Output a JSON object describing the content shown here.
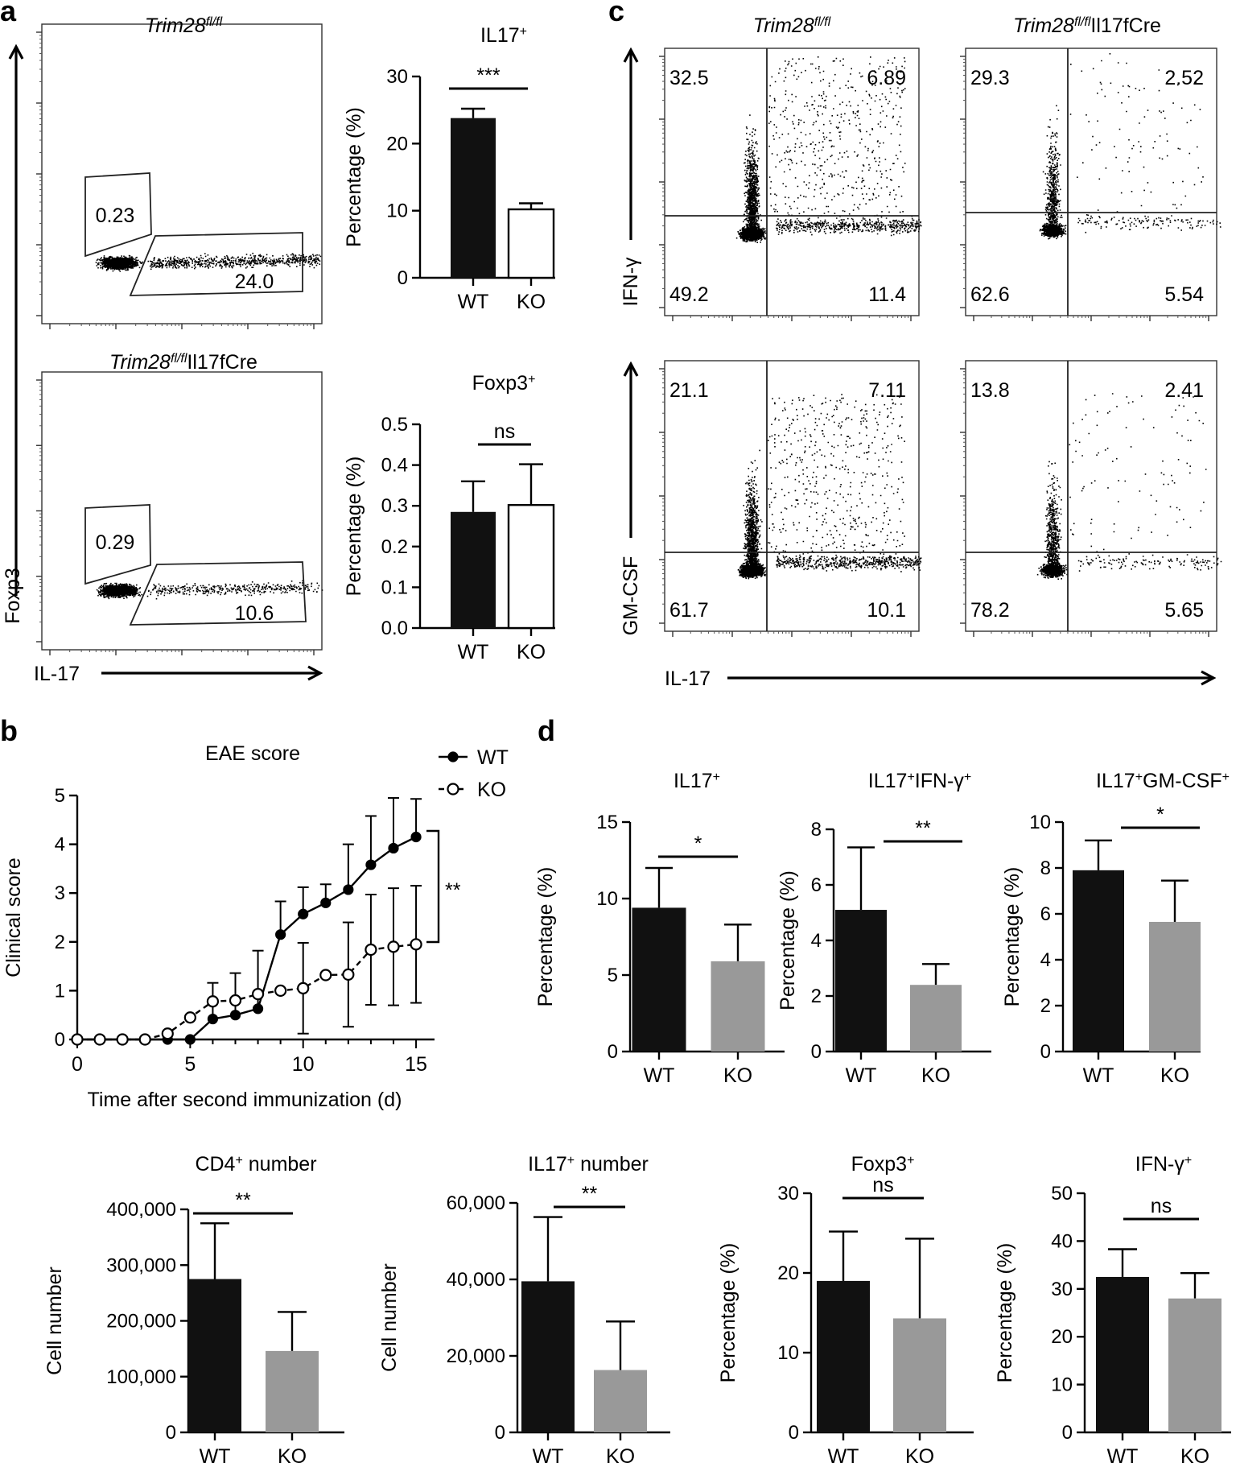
{
  "panel_labels": {
    "a": "a",
    "b": "b",
    "c": "c",
    "d": "d"
  },
  "panel_a": {
    "flow": [
      {
        "title_italic": "Trim28",
        "title_sup": "fl/fl",
        "title_rest": "",
        "gate_foxp3": "0.23",
        "gate_il17": "24.0"
      },
      {
        "title_italic": "Trim28",
        "title_sup": "fl/fl",
        "title_rest": "Il17fCre",
        "gate_foxp3": "0.29",
        "gate_il17": "10.6"
      }
    ],
    "y_axis_label": "Foxp3",
    "x_axis_label": "IL-17"
  },
  "panel_c": {
    "columns": [
      {
        "title_italic": "Trim28",
        "title_sup": "fl/fl",
        "title_rest": ""
      },
      {
        "title_italic": "Trim28",
        "title_sup": "fl/fl",
        "title_rest": "Il17fCre"
      }
    ],
    "rows": [
      {
        "y_label": "IFN-γ",
        "quadrants": [
          [
            "32.5",
            "6.89",
            "49.2",
            "11.4"
          ],
          [
            "29.3",
            "2.52",
            "62.6",
            "5.54"
          ]
        ]
      },
      {
        "y_label": "GM-CSF",
        "quadrants": [
          [
            "21.1",
            "7.11",
            "61.7",
            "10.1"
          ],
          [
            "13.8",
            "2.41",
            "78.2",
            "5.65"
          ]
        ]
      }
    ],
    "x_axis_label": "IL-17"
  },
  "chart_data": [
    {
      "id": "a-il17",
      "type": "bar",
      "title": "IL17",
      "title_sup": "+",
      "categories": [
        "WT",
        "KO"
      ],
      "values": [
        23.8,
        10.2
      ],
      "errors": [
        1.4,
        0.9
      ],
      "ylabel": "Percentage (%)",
      "ylim": [
        0,
        30
      ],
      "yticks": [
        "0",
        "10",
        "20",
        "30"
      ],
      "significance": "***",
      "colors": [
        "#111111",
        "#ffffff"
      ]
    },
    {
      "id": "a-foxp3",
      "type": "bar",
      "title": "Foxp3",
      "title_sup": "+",
      "categories": [
        "WT",
        "KO"
      ],
      "values": [
        0.285,
        0.302
      ],
      "errors": [
        0.075,
        0.1
      ],
      "ylabel": "Percentage (%)",
      "ylim": [
        0,
        0.5
      ],
      "yticks": [
        "0.0",
        "0.1",
        "0.2",
        "0.3",
        "0.4",
        "0.5"
      ],
      "significance": "ns",
      "colors": [
        "#111111",
        "#ffffff"
      ]
    },
    {
      "id": "b-eae",
      "type": "line",
      "title": "EAE score",
      "xlabel": "Time after second immunization (d)",
      "ylabel": "Clinical score",
      "xlim": [
        0,
        15
      ],
      "ylim": [
        0,
        5
      ],
      "xticks": [
        "0",
        "5",
        "10",
        "15"
      ],
      "yticks": [
        "0",
        "1",
        "2",
        "3",
        "4",
        "5"
      ],
      "significance": "**",
      "x": [
        0,
        1,
        2,
        3,
        4,
        5,
        6,
        7,
        8,
        9,
        10,
        11,
        12,
        13,
        14,
        15
      ],
      "series": [
        {
          "name": "WT",
          "values": [
            0,
            0,
            0,
            0,
            0,
            0,
            0.42,
            0.5,
            0.63,
            2.15,
            2.57,
            2.8,
            3.07,
            3.58,
            3.92,
            4.15
          ],
          "errors": [
            0,
            0,
            0,
            0,
            0,
            0,
            0.74,
            0.86,
            1.19,
            0.68,
            0.55,
            0.38,
            0.93,
            1.0,
            1.03,
            0.78
          ]
        },
        {
          "name": "KO",
          "values": [
            0,
            0,
            0,
            0,
            0.12,
            0.45,
            0.78,
            0.8,
            0.93,
            1.0,
            1.05,
            1.32,
            1.33,
            1.84,
            1.9,
            1.95
          ],
          "errors": [
            0,
            0,
            0,
            0,
            0,
            0,
            0,
            0,
            0,
            0,
            0.93,
            0,
            1.07,
            1.13,
            1.2,
            1.2
          ]
        }
      ]
    },
    {
      "id": "d-il17",
      "type": "bar",
      "title": "IL17",
      "title_sup": "+",
      "categories": [
        "WT",
        "KO"
      ],
      "values": [
        9.4,
        5.9
      ],
      "errors": [
        2.6,
        2.4
      ],
      "ylabel": "Percentage (%)",
      "ylim": [
        0,
        15
      ],
      "yticks": [
        "0",
        "5",
        "10",
        "15"
      ],
      "significance": "*",
      "colors": [
        "#111111",
        "#999999"
      ]
    },
    {
      "id": "d-il17ifng",
      "type": "bar",
      "title": "IL17+IFN-γ+",
      "categories": [
        "WT",
        "KO"
      ],
      "values": [
        5.1,
        2.4
      ],
      "errors": [
        2.25,
        0.75
      ],
      "ylabel": "Percentage (%)",
      "ylim": [
        0,
        8
      ],
      "yticks": [
        "0",
        "2",
        "4",
        "6",
        "8"
      ],
      "significance": "**",
      "colors": [
        "#111111",
        "#999999"
      ]
    },
    {
      "id": "d-il17gmcsf",
      "type": "bar",
      "title": "IL17+GM-CSF+",
      "categories": [
        "WT",
        "KO"
      ],
      "values": [
        7.9,
        5.65
      ],
      "errors": [
        1.3,
        1.8
      ],
      "ylabel": "Percentage (%)",
      "ylim": [
        0,
        10
      ],
      "yticks": [
        "0",
        "2",
        "4",
        "6",
        "8",
        "10"
      ],
      "significance": "*",
      "colors": [
        "#111111",
        "#999999"
      ]
    },
    {
      "id": "d-cd4num",
      "type": "bar",
      "title": "CD4",
      "title_sup": "+",
      "title_after": " number",
      "categories": [
        "WT",
        "KO"
      ],
      "values": [
        275000,
        146000
      ],
      "errors": [
        100000,
        70000
      ],
      "ylabel": "Cell number",
      "ylim": [
        0,
        400000
      ],
      "yticks": [
        "0",
        "100,000",
        "200,000",
        "300,000",
        "400,000"
      ],
      "significance": "**",
      "colors": [
        "#111111",
        "#999999"
      ]
    },
    {
      "id": "d-il17num",
      "type": "bar",
      "title": "IL17",
      "title_sup": "+",
      "title_after": " number",
      "categories": [
        "WT",
        "KO"
      ],
      "values": [
        39500,
        16300
      ],
      "errors": [
        16800,
        12700
      ],
      "ylabel": "Cell number",
      "ylim": [
        0,
        60000
      ],
      "yticks": [
        "0",
        "20,000",
        "40,000",
        "60,000"
      ],
      "significance": "**",
      "colors": [
        "#111111",
        "#999999"
      ]
    },
    {
      "id": "d-foxp3",
      "type": "bar",
      "title": "Foxp3",
      "title_sup": "+",
      "categories": [
        "WT",
        "KO"
      ],
      "values": [
        19.0,
        14.3
      ],
      "errors": [
        6.2,
        10.0
      ],
      "ylabel": "Percentage (%)",
      "ylim": [
        0,
        30
      ],
      "yticks": [
        "0",
        "10",
        "20",
        "30"
      ],
      "significance": "ns",
      "colors": [
        "#111111",
        "#999999"
      ]
    },
    {
      "id": "d-ifng",
      "type": "bar",
      "title": "IFN-γ",
      "title_sup": "+",
      "categories": [
        "WT",
        "KO"
      ],
      "values": [
        32.5,
        28.0
      ],
      "errors": [
        5.8,
        5.3
      ],
      "ylabel": "Percentage (%)",
      "ylim": [
        0,
        50
      ],
      "yticks": [
        "0",
        "10",
        "20",
        "30",
        "40",
        "50"
      ],
      "significance": "ns",
      "colors": [
        "#111111",
        "#999999"
      ]
    }
  ]
}
